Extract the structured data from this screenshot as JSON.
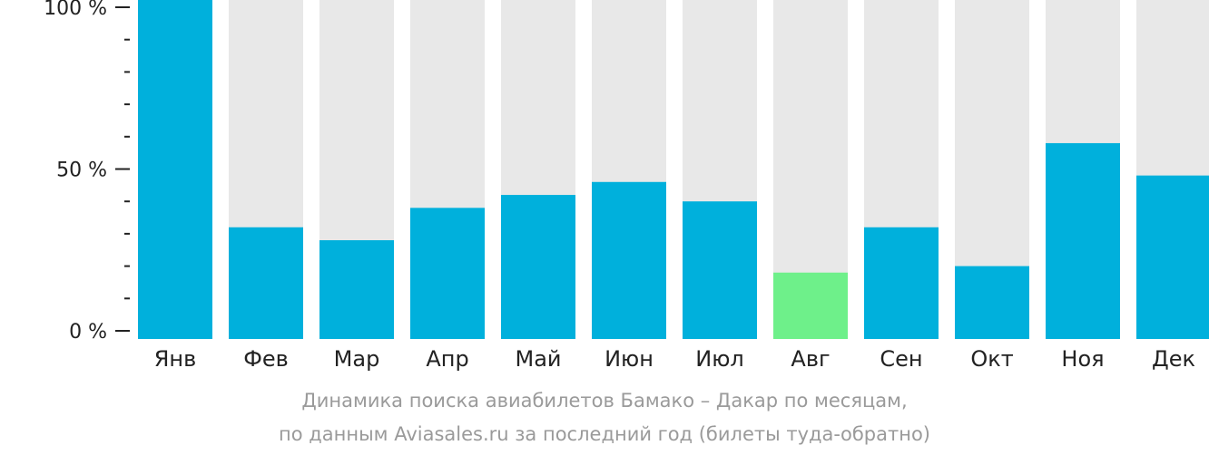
{
  "chart_data": {
    "type": "bar",
    "categories": [
      "Янв",
      "Фев",
      "Мар",
      "Апр",
      "Май",
      "Июн",
      "Июл",
      "Авг",
      "Сен",
      "Окт",
      "Ноя",
      "Дек"
    ],
    "values": [
      100,
      32,
      28,
      38,
      42,
      46,
      40,
      18,
      32,
      20,
      58,
      48
    ],
    "ylim": [
      0,
      100
    ],
    "yticks": [
      {
        "value": 100,
        "label": "100 %"
      },
      {
        "value": 50,
        "label": "50 %"
      },
      {
        "value": 0,
        "label": "0 %"
      }
    ],
    "minor_tick_step": 10,
    "highlight_index": 7,
    "grid": false,
    "colors": {
      "bar": "#00b0dc",
      "highlight": "#6ef08a",
      "background_track": "#e8e8e8",
      "axis": "#222222"
    }
  },
  "caption": {
    "line1": "Динамика поиска авиабилетов Бамако – Дакар по месяцам,",
    "line2": "по данным Aviasales.ru за последний год (билеты туда-обратно)"
  }
}
